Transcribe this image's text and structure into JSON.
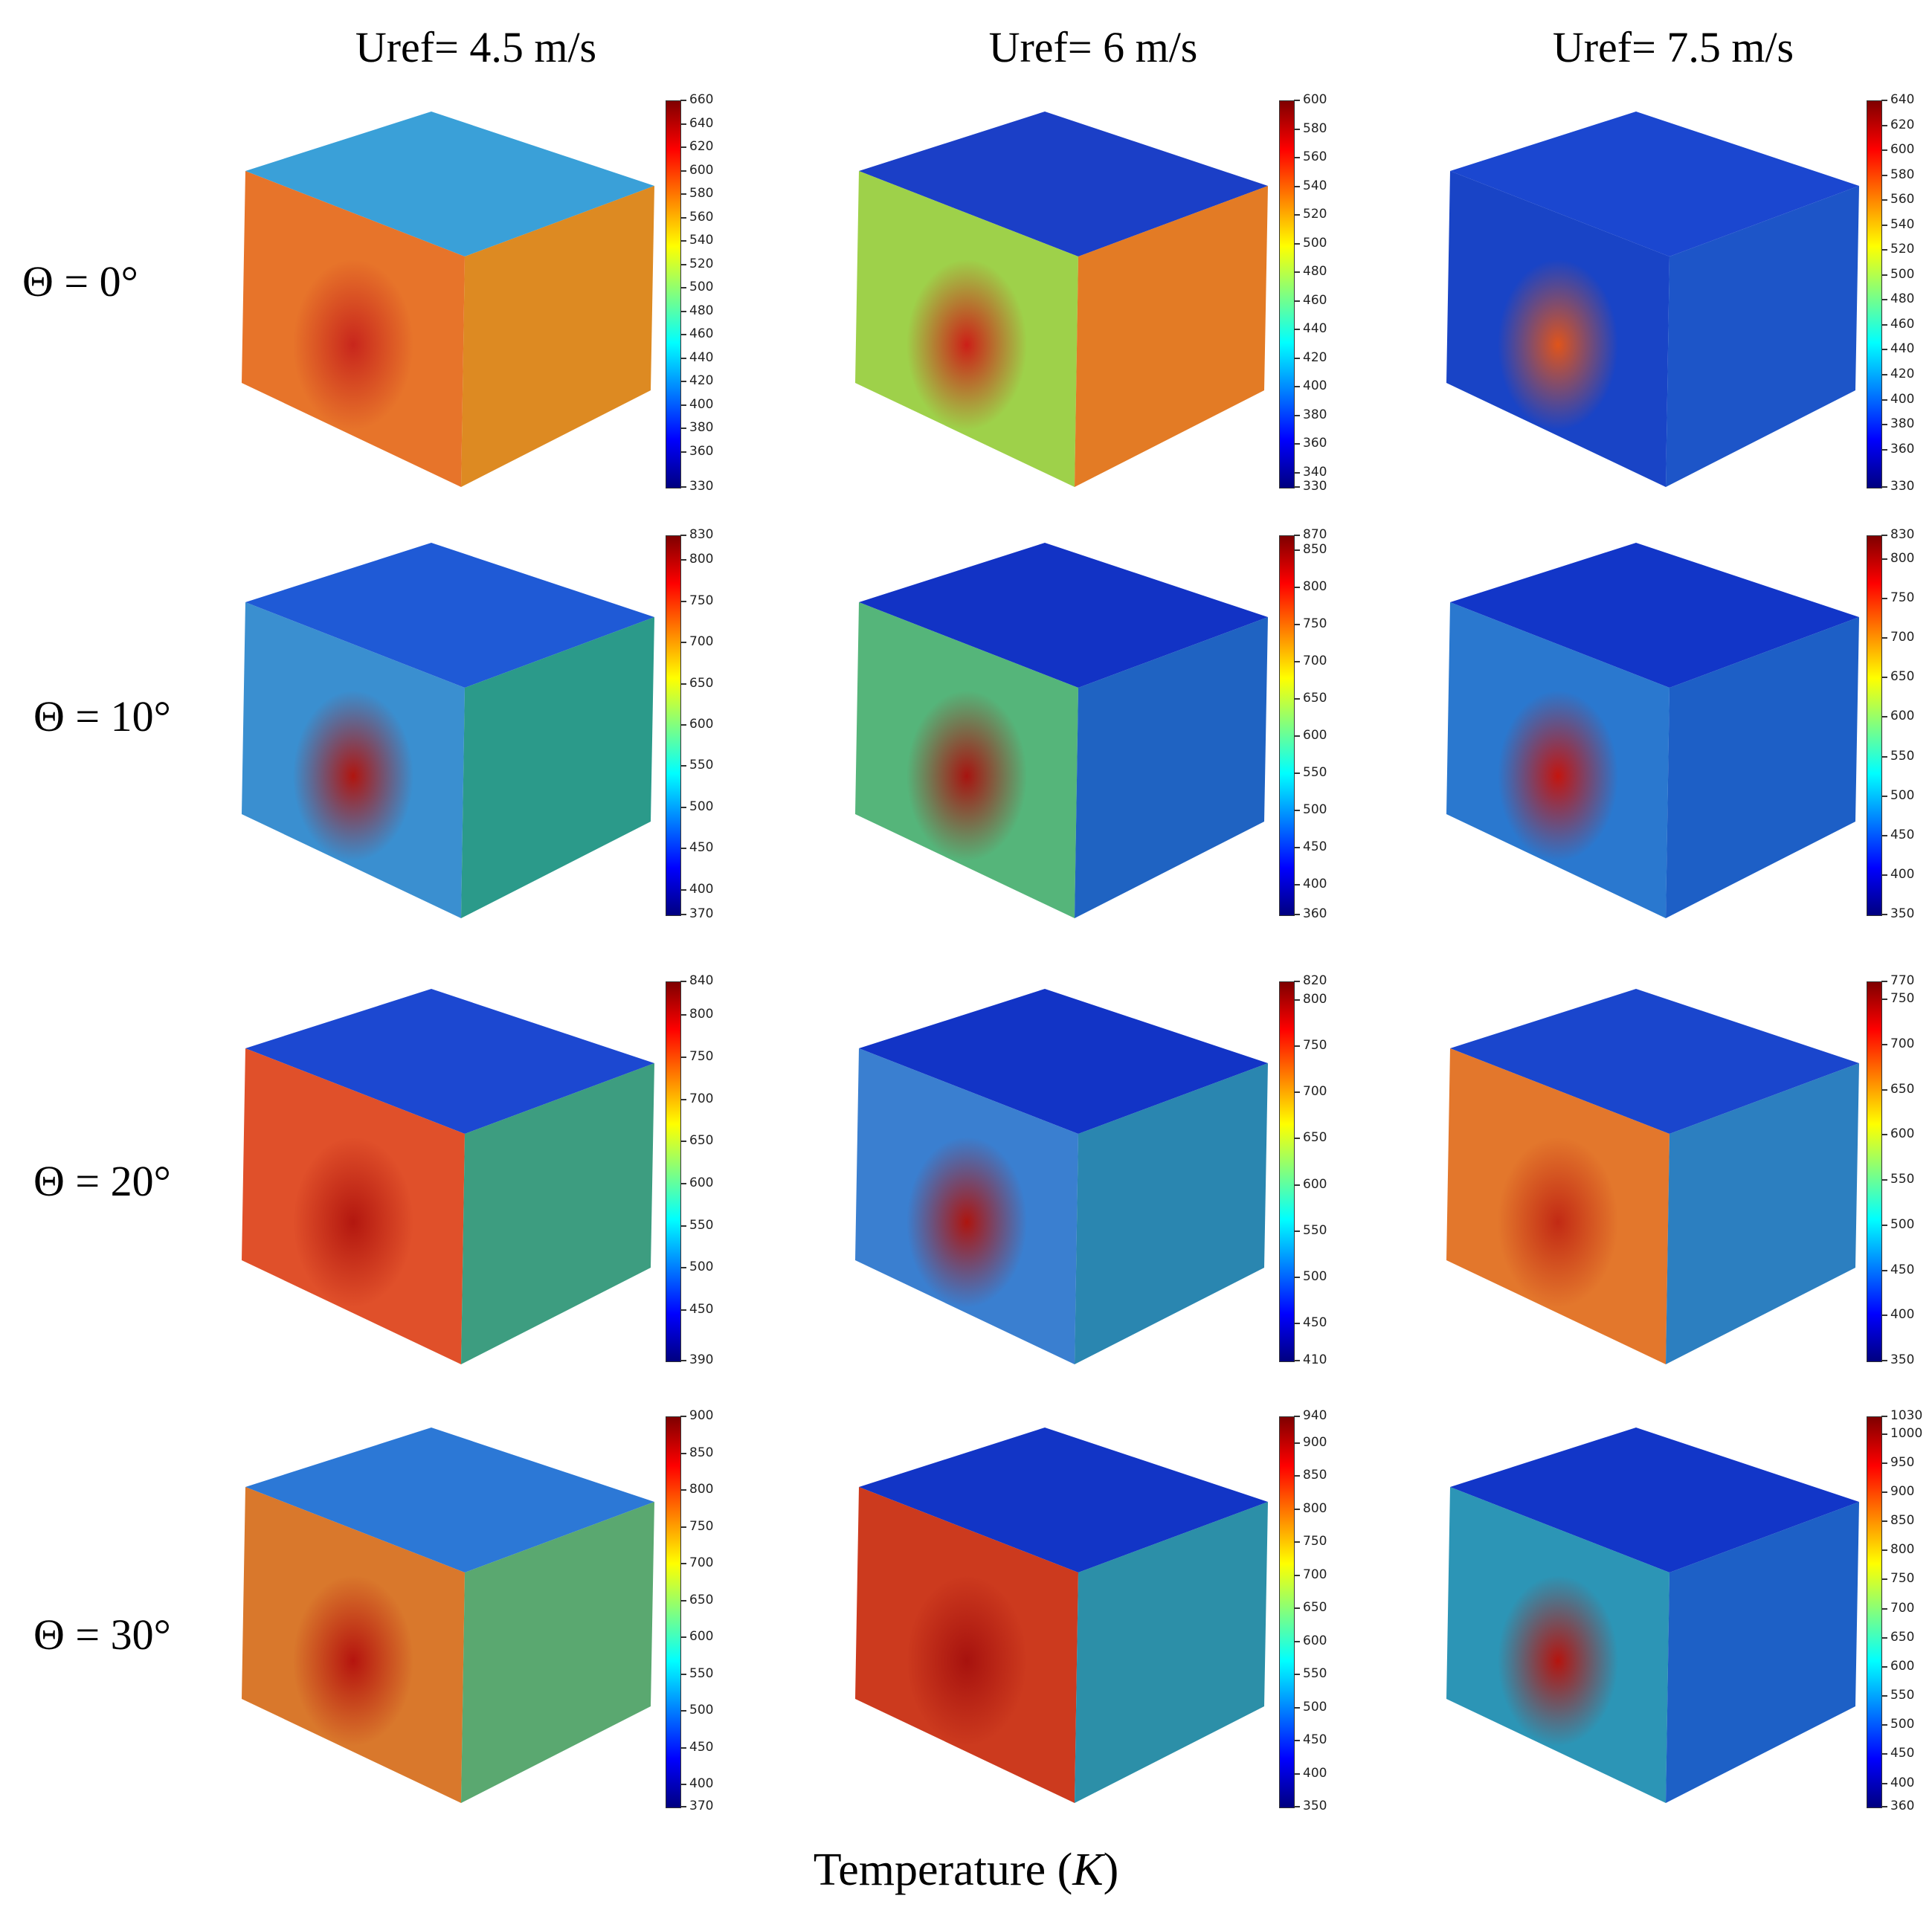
{
  "columns": [
    {
      "label": "Uref= 4.5 m/s"
    },
    {
      "label": "Uref= 6 m/s"
    },
    {
      "label": "Uref= 7.5 m/s"
    }
  ],
  "rows": [
    {
      "label": "Θ = 0°"
    },
    {
      "label": "Θ = 10°"
    },
    {
      "label": "Θ = 20°"
    },
    {
      "label": "Θ = 30°"
    }
  ],
  "colormap": [
    "#00007f",
    "#0000ff",
    "#0080ff",
    "#00ffff",
    "#80ff80",
    "#ffff00",
    "#ff8000",
    "#ff0000",
    "#7f0000"
  ],
  "panels": [
    {
      "row": 0,
      "col": 0,
      "min": 330,
      "max": 660,
      "ticks": [
        "660",
        "640",
        "620",
        "600",
        "580",
        "560",
        "540",
        "520",
        "500",
        "480",
        "460",
        "440",
        "420",
        "400",
        "380",
        "360",
        "330"
      ],
      "face_front": "#e7742a",
      "face_top": "#3aa0d8",
      "face_side": "#dd8a22",
      "hot": "#c8261c"
    },
    {
      "row": 0,
      "col": 1,
      "min": 330,
      "max": 600,
      "ticks": [
        "600",
        "580",
        "560",
        "540",
        "520",
        "500",
        "480",
        "460",
        "440",
        "420",
        "400",
        "380",
        "360",
        "340",
        "330"
      ],
      "face_front": "#9ed14a",
      "face_top": "#1b3fc7",
      "face_side": "#e37b25",
      "hot": "#cc1f17"
    },
    {
      "row": 0,
      "col": 2,
      "min": 330,
      "max": 640,
      "ticks": [
        "640",
        "620",
        "600",
        "580",
        "560",
        "540",
        "520",
        "500",
        "480",
        "460",
        "440",
        "420",
        "400",
        "380",
        "360",
        "330"
      ],
      "face_front": "#1944c6",
      "face_top": "#1b47d0",
      "face_side": "#1d55c8",
      "hot": "#e0541a"
    },
    {
      "row": 1,
      "col": 0,
      "min": 370,
      "max": 830,
      "ticks": [
        "830",
        "800",
        "750",
        "700",
        "650",
        "600",
        "550",
        "500",
        "450",
        "400",
        "370"
      ],
      "face_front": "#3a8fd0",
      "face_top": "#1f5ad6",
      "face_side": "#2b9a8a",
      "hot": "#b0150f"
    },
    {
      "row": 1,
      "col": 1,
      "min": 360,
      "max": 870,
      "ticks": [
        "870",
        "850",
        "800",
        "750",
        "700",
        "650",
        "600",
        "550",
        "500",
        "450",
        "400",
        "360"
      ],
      "face_front": "#55b57a",
      "face_top": "#1233c5",
      "face_side": "#1f63c2",
      "hot": "#a71410"
    },
    {
      "row": 1,
      "col": 2,
      "min": 350,
      "max": 830,
      "ticks": [
        "830",
        "800",
        "750",
        "700",
        "650",
        "600",
        "550",
        "500",
        "450",
        "400",
        "350"
      ],
      "face_front": "#2a78cf",
      "face_top": "#1236c8",
      "face_side": "#1d5fc6",
      "hot": "#c3150f"
    },
    {
      "row": 2,
      "col": 0,
      "min": 390,
      "max": 840,
      "ticks": [
        "840",
        "800",
        "750",
        "700",
        "650",
        "600",
        "550",
        "500",
        "450",
        "390"
      ],
      "face_front": "#e0502a",
      "face_top": "#1c48d1",
      "face_side": "#3d9d80",
      "hot": "#b3170f"
    },
    {
      "row": 2,
      "col": 1,
      "min": 410,
      "max": 820,
      "ticks": [
        "820",
        "800",
        "750",
        "700",
        "650",
        "600",
        "550",
        "500",
        "450",
        "410"
      ],
      "face_front": "#3a7fd0",
      "face_top": "#1234c6",
      "face_side": "#2a86b0",
      "hot": "#ad150f"
    },
    {
      "row": 2,
      "col": 2,
      "min": 350,
      "max": 770,
      "ticks": [
        "770",
        "750",
        "700",
        "650",
        "600",
        "550",
        "500",
        "450",
        "400",
        "350"
      ],
      "face_front": "#e3772c",
      "face_top": "#1a46cd",
      "face_side": "#2c7fc0",
      "hot": "#c22a14"
    },
    {
      "row": 3,
      "col": 0,
      "min": 370,
      "max": 900,
      "ticks": [
        "900",
        "850",
        "800",
        "750",
        "700",
        "650",
        "600",
        "550",
        "500",
        "450",
        "400",
        "370"
      ],
      "face_front": "#d9782c",
      "face_top": "#2c78d6",
      "face_side": "#5aa870",
      "hot": "#b5140e"
    },
    {
      "row": 3,
      "col": 1,
      "min": 350,
      "max": 940,
      "ticks": [
        "940",
        "900",
        "850",
        "800",
        "750",
        "700",
        "650",
        "600",
        "550",
        "500",
        "450",
        "400",
        "350"
      ],
      "face_front": "#cc3a1e",
      "face_top": "#1235c6",
      "face_side": "#2c8fa8",
      "hot": "#a7120e"
    },
    {
      "row": 3,
      "col": 2,
      "min": 360,
      "max": 1030,
      "ticks": [
        "1030",
        "1000",
        "950",
        "900",
        "850",
        "800",
        "750",
        "700",
        "650",
        "600",
        "550",
        "500",
        "450",
        "400",
        "360"
      ],
      "face_front": "#2c95b6",
      "face_top": "#1236c8",
      "face_side": "#1d60c6",
      "hot": "#b5140e"
    }
  ],
  "footer": {
    "text": "Temperature (",
    "unit": "K",
    "close": ")"
  }
}
